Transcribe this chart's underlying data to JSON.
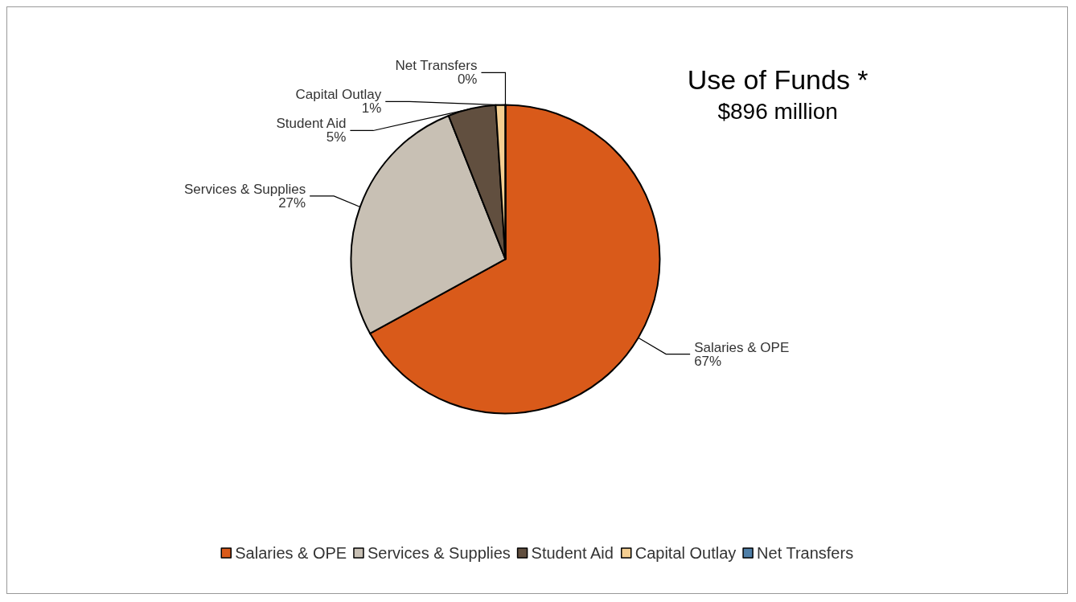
{
  "chart_data": {
    "type": "pie",
    "title": "Use of Funds *",
    "subtitle": "$896 million",
    "categories": [
      "Salaries & OPE",
      "Services & Supplies",
      "Student Aid",
      "Capital Outlay",
      "Net Transfers"
    ],
    "values": [
      67,
      27,
      5,
      1,
      0
    ],
    "value_labels": [
      "67%",
      "27%",
      "5%",
      "1%",
      "0%"
    ],
    "colors": [
      "#d95a1a",
      "#c8c0b4",
      "#614f3f",
      "#f5cf92",
      "#4f7fa8"
    ],
    "legend": "bottom"
  }
}
